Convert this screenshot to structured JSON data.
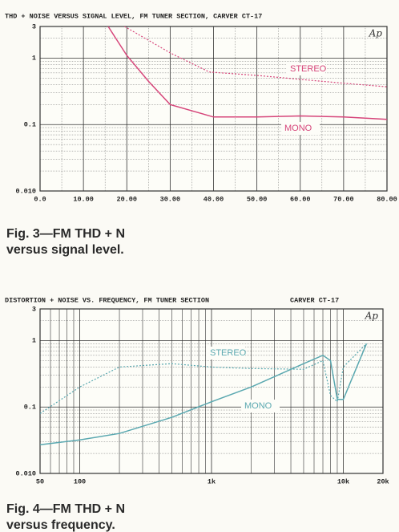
{
  "chart_data": [
    {
      "type": "line",
      "title": "THD + NOISE VERSUS SIGNAL LEVEL, FM TUNER SECTION, CARVER CT-17",
      "logo": "Ap",
      "caption": [
        "Fig. 3—FM THD + N",
        "versus signal level."
      ],
      "xlim": [
        0,
        80
      ],
      "xticks": [
        {
          "value": 0,
          "label": "0.0"
        },
        {
          "value": 10,
          "label": "10.00"
        },
        {
          "value": 20,
          "label": "20.00"
        },
        {
          "value": 30,
          "label": "30.00"
        },
        {
          "value": 40,
          "label": "40.00"
        },
        {
          "value": 50,
          "label": "50.00"
        },
        {
          "value": 60,
          "label": "60.00"
        },
        {
          "value": 70,
          "label": "70.00"
        },
        {
          "value": 80,
          "label": "80.00"
        }
      ],
      "ylim": [
        0.01,
        3
      ],
      "ylog": true,
      "yticks": [
        3,
        1,
        0.1,
        {
          "value": 0.01,
          "label": "0.010"
        }
      ],
      "grid": true,
      "series": [
        {
          "name": "STEREO",
          "color": "#d6457a",
          "dash": true,
          "x": [
            19.5,
            30,
            39,
            50,
            60,
            70,
            80
          ],
          "values": [
            3,
            1.2,
            0.62,
            0.55,
            0.48,
            0.42,
            0.37
          ]
        },
        {
          "name": "MONO",
          "color": "#d6457a",
          "dash": false,
          "x": [
            15.7,
            20,
            25,
            30,
            40,
            50,
            60,
            70,
            80
          ],
          "values": [
            3,
            1.1,
            0.45,
            0.2,
            0.13,
            0.13,
            0.135,
            0.13,
            0.12
          ]
        }
      ]
    },
    {
      "type": "line",
      "title": "DISTORTION + NOISE VS. FREQUENCY, FM TUNER SECTION",
      "title_right": "CARVER CT-17",
      "logo": "Ap",
      "caption": [
        "Fig. 4—FM THD + N",
        "versus frequency."
      ],
      "xlim": [
        50,
        20000
      ],
      "xlog": true,
      "xticks": [
        50,
        100,
        {
          "value": 1000,
          "label": "1k"
        },
        {
          "value": 10000,
          "label": "10k"
        },
        {
          "value": 20000,
          "label": "20k"
        }
      ],
      "ylim": [
        0.01,
        3
      ],
      "ylog": true,
      "yticks": [
        3,
        1,
        0.1,
        {
          "value": 0.01,
          "label": "0.010"
        }
      ],
      "grid": true,
      "series": [
        {
          "name": "STEREO",
          "color": "#5aa8b0",
          "dash": true,
          "x": [
            50,
            100,
            200,
            500,
            1000,
            2000,
            5000,
            7000,
            8000,
            9000,
            10000,
            15000
          ],
          "values": [
            0.08,
            0.2,
            0.4,
            0.45,
            0.4,
            0.38,
            0.37,
            0.5,
            0.15,
            0.12,
            0.4,
            0.9
          ]
        },
        {
          "name": "MONO",
          "color": "#5aa8b0",
          "dash": false,
          "x": [
            50,
            100,
            200,
            500,
            1000,
            2000,
            5000,
            7000,
            8000,
            9000,
            10000,
            15000
          ],
          "values": [
            0.027,
            0.032,
            0.04,
            0.07,
            0.12,
            0.2,
            0.45,
            0.6,
            0.5,
            0.13,
            0.13,
            0.9
          ]
        }
      ]
    }
  ]
}
